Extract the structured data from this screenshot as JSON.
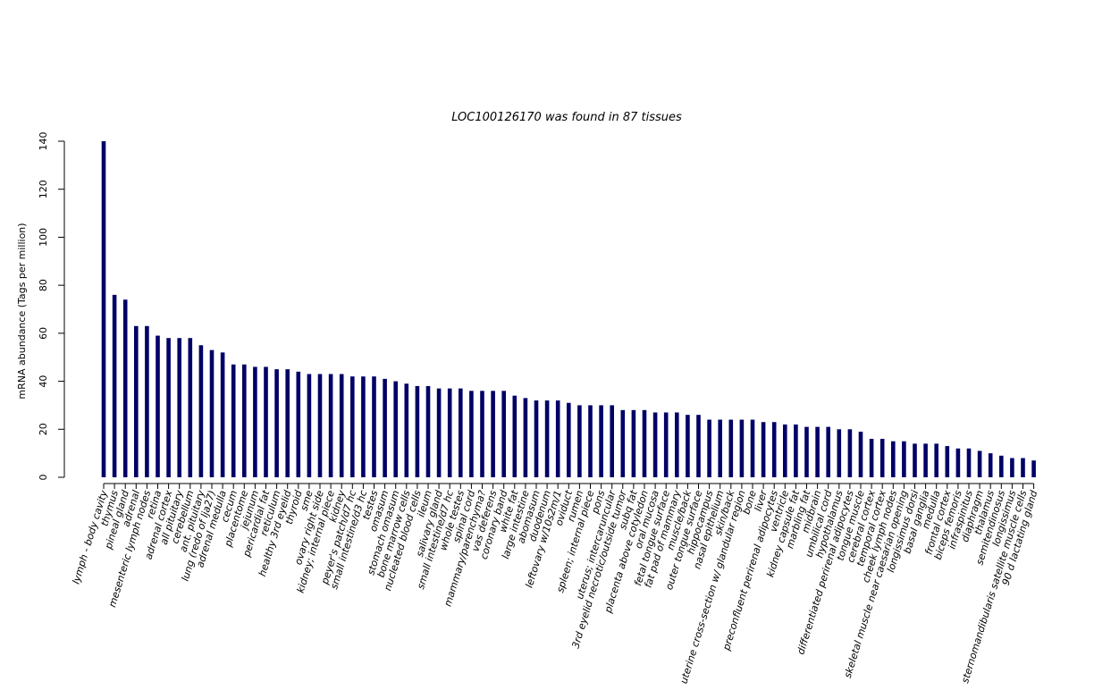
{
  "chart_data": {
    "type": "bar",
    "title": "LOC100126170  was found in  87  tissues",
    "xlabel": "",
    "ylabel": "mRNA abundance (Tags per million)",
    "ylim": [
      0,
      140
    ],
    "yticks": [
      0,
      20,
      40,
      60,
      80,
      100,
      120,
      140
    ],
    "bar_color": "#000066",
    "grid": false,
    "legend": "none",
    "categories": [
      "lymph - body cavity",
      "thymus",
      "pineal gland",
      "adrenal",
      "mesenteric lymph nodes",
      "retina",
      "adrenal cortex",
      "all pituitary",
      "cerebellum",
      "ant. pituitary",
      "lung (redo of lja27)",
      "adrenal medulla",
      "cecum",
      "placentome",
      "jejunum",
      "pericardial fat",
      "reticulum",
      "healthy 3rd eyelid",
      "thyroid",
      "sme",
      "ovary right side",
      "kidney; internal piece",
      "kidney",
      "peyer's patch/d7 hc",
      "small intestine/d3 hc",
      "testes",
      "omasum",
      "stomach omasum",
      "bone marrow cells",
      "nucleated blood cells",
      "ileum",
      "salivary gland",
      "small intestine/d7 hc",
      "whole testes",
      "spinal cord",
      "mammary/parenchyma?",
      "vas deferens",
      "coronary band",
      "white fat",
      "large intestine",
      "abomasum",
      "duodenum",
      "leftovary w/10s2m/1",
      "oviduct",
      "rumen",
      "spleen; internal piece",
      "pons",
      "uterus; intercaruncular",
      "3rd eyelid necrotic/outside tumor",
      "subq fat",
      "placenta above cotyledon",
      "oral mucosa",
      "fetal tongue surface",
      "fat pad of mammary",
      "muscle/back",
      "outer tongue surface",
      "hippocampus",
      "nasal epithelium",
      "skin/back",
      "uterine cross-section w/ glandular region",
      "bone",
      "liver",
      "preconfluent perirenal adipocytes",
      "ventricle",
      "kidney capsule fat",
      "marbling fat",
      "midbrain",
      "umbilical cord",
      "hypothalamus",
      "differentiated perirenal adipocytes",
      "tongue muscle",
      "cerebral cortex",
      "temporal cortex",
      "cheek lymph nodes",
      "skeletal muscle near caesarian opening",
      "longissimus dorsi",
      "basal ganglia",
      "medulla",
      "frontal cortex",
      "biceps femoris",
      "infraspinitus",
      "diaphragm",
      "thalamus",
      "semitendinosus",
      "longissimus",
      "sternomandibularis satellite muscle cells",
      "90 d lactating gland"
    ],
    "values": [
      140,
      76,
      74,
      63,
      63,
      59,
      58,
      58,
      58,
      55,
      53,
      52,
      47,
      47,
      46,
      46,
      45,
      45,
      44,
      43,
      43,
      43,
      43,
      42,
      42,
      42,
      41,
      40,
      39,
      38,
      38,
      37,
      37,
      37,
      36,
      36,
      36,
      36,
      34,
      33,
      32,
      32,
      32,
      31,
      30,
      30,
      30,
      30,
      28,
      28,
      28,
      27,
      27,
      27,
      26,
      26,
      24,
      24,
      24,
      24,
      24,
      23,
      23,
      22,
      22,
      21,
      21,
      21,
      20,
      20,
      19,
      16,
      16,
      15,
      15,
      14,
      14,
      14,
      13,
      12,
      12,
      11,
      10,
      9,
      8,
      8,
      7
    ]
  }
}
